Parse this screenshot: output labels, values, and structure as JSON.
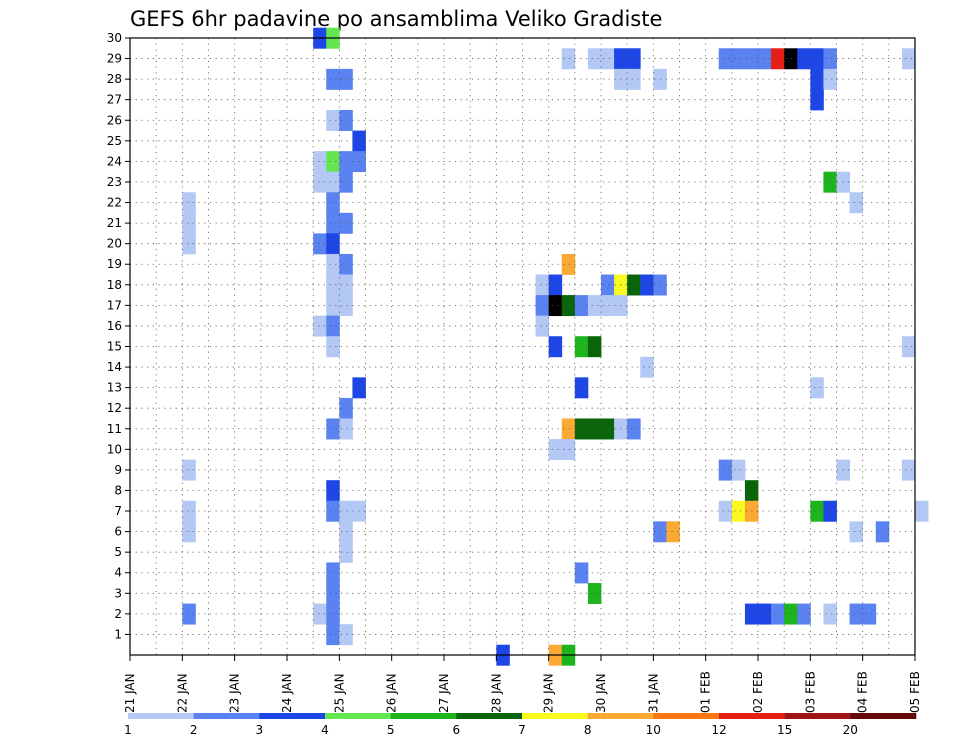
{
  "chart_data": {
    "type": "heatmap",
    "title": "GEFS 6hr padavine po ansamblima Veliko Gradiste",
    "y_ticks": [
      "1",
      "2",
      "3",
      "4",
      "5",
      "6",
      "7",
      "8",
      "9",
      "10",
      "11",
      "12",
      "13",
      "14",
      "15",
      "16",
      "17",
      "18",
      "19",
      "20",
      "21",
      "22",
      "23",
      "24",
      "25",
      "26",
      "27",
      "28",
      "29",
      "30"
    ],
    "x_ticks": [
      {
        "label": "21 JAN",
        "day": 0
      },
      {
        "label": "22 JAN",
        "day": 1
      },
      {
        "label": "23 JAN",
        "day": 2
      },
      {
        "label": "24 JAN",
        "day": 3
      },
      {
        "label": "25 JAN",
        "day": 4
      },
      {
        "label": "26 JAN",
        "day": 5
      },
      {
        "label": "27 JAN",
        "day": 6
      },
      {
        "label": "28 JAN",
        "day": 7
      },
      {
        "label": "29 JAN",
        "day": 8
      },
      {
        "label": "30 JAN",
        "day": 9
      },
      {
        "label": "31 JAN",
        "day": 10
      },
      {
        "label": "01 FEB",
        "day": 11
      },
      {
        "label": "02 FEB",
        "day": 12
      },
      {
        "label": "03 FEB",
        "day": 13
      },
      {
        "label": "04 FEB",
        "day": 14
      },
      {
        "label": "05 FEB",
        "day": 15
      }
    ],
    "x_range_days": [
      0,
      15
    ],
    "time_step_hours": 6,
    "y_range": [
      0,
      30
    ],
    "grid": true,
    "legend": {
      "placement": "bottom",
      "labels": [
        "1",
        "2",
        "3",
        "4",
        "5",
        "6",
        "7",
        "8",
        "10",
        "12",
        "15",
        "20"
      ],
      "colors": [
        "#b4c8f5",
        "#5a82f0",
        "#1e46e6",
        "#64e650",
        "#1eb41e",
        "#0a640a",
        "#fafa1e",
        "#faaa32",
        "#fa7814",
        "#e61e14",
        "#a01414",
        "#640a0a"
      ]
    },
    "cells": [
      [
        3.5,
        30,
        3
      ],
      [
        3.75,
        30,
        4
      ],
      [
        8.25,
        29,
        1
      ],
      [
        8.75,
        29,
        1
      ],
      [
        9,
        29,
        1
      ],
      [
        9.25,
        29,
        3
      ],
      [
        9.5,
        29,
        3
      ],
      [
        11.25,
        29,
        2
      ],
      [
        11.5,
        29,
        2
      ],
      [
        11.75,
        29,
        2
      ],
      [
        12,
        29,
        2
      ],
      [
        12.25,
        29,
        10
      ],
      [
        12.5,
        29,
        20
      ],
      [
        12.75,
        29,
        3
      ],
      [
        13,
        29,
        3
      ],
      [
        13.25,
        29,
        2
      ],
      [
        14.75,
        29,
        1
      ],
      [
        3.75,
        28,
        2
      ],
      [
        4,
        28,
        2
      ],
      [
        9.25,
        28,
        1
      ],
      [
        9.5,
        28,
        1
      ],
      [
        10,
        28,
        1
      ],
      [
        13,
        28,
        3
      ],
      [
        13.25,
        28,
        1
      ],
      [
        13,
        27,
        3
      ],
      [
        3.75,
        26,
        1
      ],
      [
        4,
        26,
        2
      ],
      [
        4.25,
        25,
        3
      ],
      [
        3.5,
        24,
        1
      ],
      [
        3.75,
        24,
        4
      ],
      [
        4,
        24,
        2
      ],
      [
        4.25,
        24,
        2
      ],
      [
        3.5,
        23,
        1
      ],
      [
        3.75,
        23,
        1
      ],
      [
        4,
        23,
        2
      ],
      [
        13.25,
        23,
        5
      ],
      [
        13.5,
        23,
        1
      ],
      [
        1,
        22,
        1
      ],
      [
        3.75,
        22,
        2
      ],
      [
        13.75,
        22,
        1
      ],
      [
        1,
        21,
        1
      ],
      [
        3.75,
        21,
        2
      ],
      [
        4,
        21,
        2
      ],
      [
        1,
        20,
        1
      ],
      [
        3.5,
        20,
        2
      ],
      [
        3.75,
        20,
        3
      ],
      [
        3.75,
        19,
        1
      ],
      [
        4,
        19,
        2
      ],
      [
        7.75,
        18,
        1
      ],
      [
        8,
        18,
        3
      ],
      [
        8.25,
        19,
        8
      ],
      [
        9,
        18,
        2
      ],
      [
        9.25,
        18,
        7
      ],
      [
        9.5,
        18,
        6
      ],
      [
        9.75,
        18,
        3
      ],
      [
        10,
        18,
        2
      ],
      [
        3.75,
        18,
        1
      ],
      [
        4,
        18,
        1
      ],
      [
        7.75,
        17,
        2
      ],
      [
        8,
        17,
        20
      ],
      [
        8.25,
        17,
        6
      ],
      [
        8.5,
        17,
        2
      ],
      [
        8.75,
        17,
        1
      ],
      [
        9,
        17,
        1
      ],
      [
        9.25,
        17,
        1
      ],
      [
        3.75,
        17,
        1
      ],
      [
        4,
        17,
        1
      ],
      [
        3.5,
        16,
        1
      ],
      [
        3.75,
        16,
        2
      ],
      [
        7.75,
        16,
        1
      ],
      [
        3.75,
        15,
        1
      ],
      [
        8,
        15,
        3
      ],
      [
        8.5,
        15,
        5
      ],
      [
        8.75,
        15,
        6
      ],
      [
        14.75,
        15,
        1
      ],
      [
        9.75,
        14,
        1
      ],
      [
        4.25,
        13,
        3
      ],
      [
        8.5,
        13,
        3
      ],
      [
        13,
        13,
        1
      ],
      [
        4,
        12,
        2
      ],
      [
        3.75,
        11,
        2
      ],
      [
        4,
        11,
        1
      ],
      [
        8.25,
        11,
        8
      ],
      [
        8.5,
        11,
        6
      ],
      [
        8.75,
        11,
        6
      ],
      [
        9,
        11,
        6
      ],
      [
        9.25,
        11,
        1
      ],
      [
        9.5,
        11,
        2
      ],
      [
        8,
        10,
        1
      ],
      [
        8.25,
        10,
        1
      ],
      [
        1,
        9,
        1
      ],
      [
        11.25,
        9,
        2
      ],
      [
        11.5,
        9,
        1
      ],
      [
        13.5,
        9,
        1
      ],
      [
        14.75,
        9,
        1
      ],
      [
        3.75,
        8,
        3
      ],
      [
        11.75,
        8,
        6
      ],
      [
        1,
        7,
        1
      ],
      [
        3.75,
        7,
        2
      ],
      [
        4,
        7,
        1
      ],
      [
        4.25,
        7,
        1
      ],
      [
        11.25,
        7,
        1
      ],
      [
        11.5,
        7,
        7
      ],
      [
        11.75,
        7,
        8
      ],
      [
        13,
        7,
        5
      ],
      [
        13.25,
        7,
        3
      ],
      [
        15,
        7,
        1
      ],
      [
        1,
        6,
        1
      ],
      [
        4,
        6,
        1
      ],
      [
        10,
        6,
        2
      ],
      [
        10.25,
        6,
        8
      ],
      [
        13.75,
        6,
        1
      ],
      [
        14.25,
        6,
        2
      ],
      [
        4,
        5,
        1
      ],
      [
        3.75,
        4,
        2
      ],
      [
        8.5,
        4,
        2
      ],
      [
        3.75,
        3,
        2
      ],
      [
        8.75,
        3,
        5
      ],
      [
        1,
        2,
        2
      ],
      [
        3.5,
        2,
        1
      ],
      [
        3.75,
        2,
        2
      ],
      [
        11.75,
        2,
        3
      ],
      [
        12,
        2,
        3
      ],
      [
        12.25,
        2,
        2
      ],
      [
        12.5,
        2,
        5
      ],
      [
        12.75,
        2,
        2
      ],
      [
        13.25,
        2,
        1
      ],
      [
        13.75,
        2,
        2
      ],
      [
        14,
        2,
        2
      ],
      [
        3.75,
        1,
        2
      ],
      [
        4,
        1,
        1
      ],
      [
        7,
        0,
        3
      ],
      [
        8,
        0,
        8
      ],
      [
        8.25,
        0,
        5
      ]
    ]
  }
}
